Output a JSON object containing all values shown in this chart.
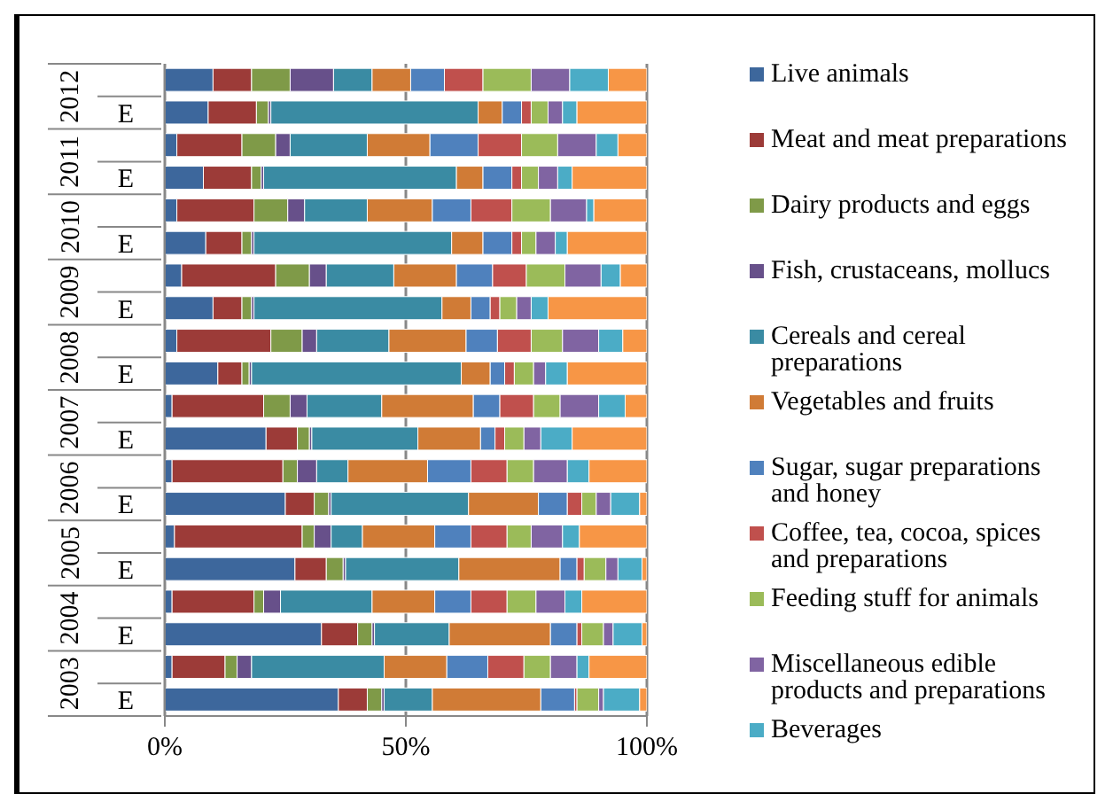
{
  "chart_data": {
    "type": "bar",
    "orientation": "horizontal",
    "stacked": true,
    "categories": [
      null,
      "E",
      null,
      "E",
      null,
      "E",
      null,
      "E",
      null,
      "E",
      null,
      "E",
      null,
      "E",
      null,
      "E",
      null,
      "E",
      null,
      "E"
    ],
    "annotations": [
      "2012",
      "2011",
      "2010",
      "2009",
      "2008",
      "2007",
      "2006",
      "2005",
      "2004",
      "2003"
    ],
    "xlim": [
      0,
      100
    ],
    "xticks": [
      {
        "value": 0,
        "label": "0%"
      },
      {
        "value": 50,
        "label": "50%"
      },
      {
        "value": 100,
        "label": "100%"
      }
    ],
    "grid": "x",
    "legend": "right",
    "series": [
      {
        "name": "Live animals",
        "color": "#3d679c",
        "values": [
          10,
          9,
          2.5,
          8,
          2.5,
          8.5,
          3.5,
          10,
          2.5,
          11,
          1.5,
          21,
          1.5,
          25,
          2,
          27,
          1.5,
          32.5,
          1.5,
          36
        ]
      },
      {
        "name": "Meat and meat preparations",
        "color": "#9c3b38",
        "values": [
          8,
          10,
          13.5,
          10,
          16,
          7.5,
          19.5,
          6,
          19.5,
          5,
          19,
          6.5,
          23,
          6,
          26.5,
          6.5,
          17,
          7.5,
          11,
          6
        ]
      },
      {
        "name": "Dairy products and eggs",
        "color": "#7f9a48",
        "values": [
          8,
          2.5,
          7,
          2,
          7,
          2,
          7,
          2,
          6.5,
          1.5,
          5.5,
          2.5,
          3,
          3,
          2.5,
          3.5,
          2,
          3,
          2.5,
          3
        ]
      },
      {
        "name": "Fish, crustaceans, mollucs",
        "color": "#67508a",
        "values": [
          9,
          0.5,
          3,
          0.5,
          3.5,
          0.5,
          3.5,
          0.5,
          3,
          0.5,
          3.5,
          0.5,
          4,
          0.5,
          3.5,
          0.5,
          3.5,
          0.5,
          3,
          0.5
        ]
      },
      {
        "name": "Cereals and cereal preparations",
        "color": "#3a8ba3",
        "values": [
          8,
          43,
          16,
          40,
          13,
          41,
          14,
          39,
          15,
          43.5,
          15.5,
          22,
          6.5,
          28.5,
          6.5,
          23.5,
          19,
          15.5,
          27.5,
          10
        ]
      },
      {
        "name": "Vegetables and fruits",
        "color": "#d07b36",
        "values": [
          8,
          5,
          13,
          5.5,
          13.5,
          6.5,
          13,
          6,
          16,
          6,
          19,
          13,
          16.5,
          14.5,
          15,
          21,
          13,
          21,
          13,
          22.5
        ]
      },
      {
        "name": "Sugar, sugar preparations and honey",
        "color": "#4f81bd",
        "values": [
          7,
          4,
          10,
          6,
          8,
          6,
          7.5,
          4,
          6.5,
          3,
          5.5,
          3,
          9,
          6,
          7.5,
          3.5,
          7.5,
          5.5,
          8.5,
          7
        ]
      },
      {
        "name": "Coffee, tea, cocoa, spices and preparations",
        "color": "#c0504d",
        "values": [
          8,
          2,
          9,
          2,
          8.5,
          2,
          7,
          2,
          7,
          2,
          7,
          2,
          7.5,
          3,
          7.5,
          1.5,
          7.5,
          1,
          7.5,
          0.5
        ]
      },
      {
        "name": "Feeding stuff for animals",
        "color": "#9bbb59",
        "values": [
          10,
          3.5,
          7.5,
          3.5,
          8,
          3,
          8,
          3.5,
          6.5,
          4,
          5.5,
          4,
          5.5,
          3,
          5,
          4.5,
          6,
          4.5,
          5.5,
          4.5
        ]
      },
      {
        "name": "Miscellaneous edible products and preparations",
        "color": "#8064a2",
        "values": [
          8,
          3,
          8,
          4,
          7.5,
          4,
          7.5,
          3,
          7.5,
          2.5,
          8,
          3.5,
          7,
          3,
          6.5,
          2.5,
          6,
          2,
          5.5,
          1
        ]
      },
      {
        "name": "Beverages",
        "color": "#4bacc6",
        "values": [
          8,
          3,
          4.5,
          3,
          1.5,
          2.5,
          4,
          3.5,
          5,
          4.5,
          5.5,
          6.5,
          4.5,
          6,
          3.5,
          5,
          3.5,
          6,
          2.5,
          7.5
        ]
      },
      {
        "color": "#f79646",
        "values": [
          8,
          14.5,
          6,
          15.5,
          11,
          16.5,
          5.5,
          20.5,
          5,
          16.5,
          4.5,
          15.5,
          12,
          1.5,
          14,
          1,
          13.5,
          1,
          12,
          1.5
        ]
      }
    ]
  }
}
